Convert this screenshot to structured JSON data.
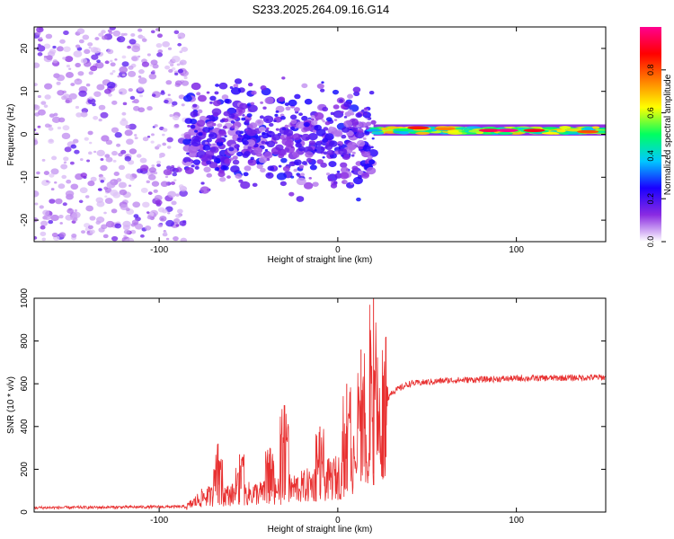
{
  "figure": {
    "title": "S233.2025.264.09.16.G14"
  },
  "chart_data": [
    {
      "type": "heatmap",
      "title": "S233.2025.264.09.16.G14",
      "xlabel": "Height of straight line (km)",
      "ylabel": "Frequency (Hz)",
      "xlim": [
        -170,
        150
      ],
      "ylim": [
        -25,
        25
      ],
      "xticks": [
        -100,
        0,
        100
      ],
      "xtick_labels": [
        "-100",
        "0",
        "100"
      ],
      "yticks": [
        -20,
        -10,
        0,
        10,
        20
      ],
      "ytick_labels": [
        "-20",
        "-10",
        "0",
        "10",
        "20"
      ],
      "colorbar": {
        "label": "Normalized spectral amplitude",
        "range": [
          0.0,
          1.0
        ],
        "ticks": [
          0.0,
          0.2,
          0.4,
          0.6,
          0.8
        ],
        "tick_labels": [
          "0.0",
          "0.2",
          "0.4",
          "0.6",
          "0.8"
        ],
        "colors": [
          "#ffffff",
          "#8a2be2",
          "#1a00ff",
          "#00c8ff",
          "#00ff60",
          "#ffff00",
          "#ff7f00",
          "#ff0000",
          "#ff0090"
        ]
      },
      "regions": [
        {
          "x_range": [
            -170,
            -85
          ],
          "description": "scattered low-amplitude noise across all frequencies",
          "freq_range": [
            -25,
            25
          ],
          "amplitude": 0.05
        },
        {
          "x_range": [
            -85,
            20
          ],
          "description": "broadband blobs around 0 Hz",
          "freq_range": [
            -10,
            10
          ],
          "amplitude": 0.15
        },
        {
          "x_range": [
            20,
            150
          ],
          "description": "narrow band near 1 Hz",
          "freq_range": [
            0,
            2
          ],
          "amplitude": 0.9
        }
      ]
    },
    {
      "type": "line",
      "xlabel": "Height of straight line (km)",
      "ylabel": "SNR (10 * v/v)",
      "xlim": [
        -170,
        150
      ],
      "ylim": [
        0,
        1000
      ],
      "xticks": [
        -100,
        0,
        100
      ],
      "xtick_labels": [
        "-100",
        "0",
        "100"
      ],
      "yticks": [
        0,
        200,
        400,
        600,
        800,
        1000
      ],
      "ytick_labels": [
        "0",
        "200",
        "400",
        "600",
        "800",
        "1000"
      ],
      "color": "#e83030",
      "series": [
        {
          "name": "SNR",
          "baseline_envelope": {
            "x": [
              -170,
              -85,
              -75,
              -60,
              -40,
              -20,
              0,
              10,
              20,
              26,
              30,
              40,
              60,
              100,
              150
            ],
            "y": [
              20,
              25,
              80,
              90,
              100,
              130,
              180,
              260,
              360,
              500,
              560,
              600,
              615,
              625,
              630
            ]
          },
          "spikes": [
            {
              "x": -67,
              "y": 320
            },
            {
              "x": -55,
              "y": 270
            },
            {
              "x": -38,
              "y": 300
            },
            {
              "x": -30,
              "y": 500
            },
            {
              "x": -10,
              "y": 400
            },
            {
              "x": 5,
              "y": 600
            },
            {
              "x": 13,
              "y": 760
            },
            {
              "x": 20,
              "y": 1000
            },
            {
              "x": 27,
              "y": 820
            }
          ]
        }
      ]
    }
  ]
}
